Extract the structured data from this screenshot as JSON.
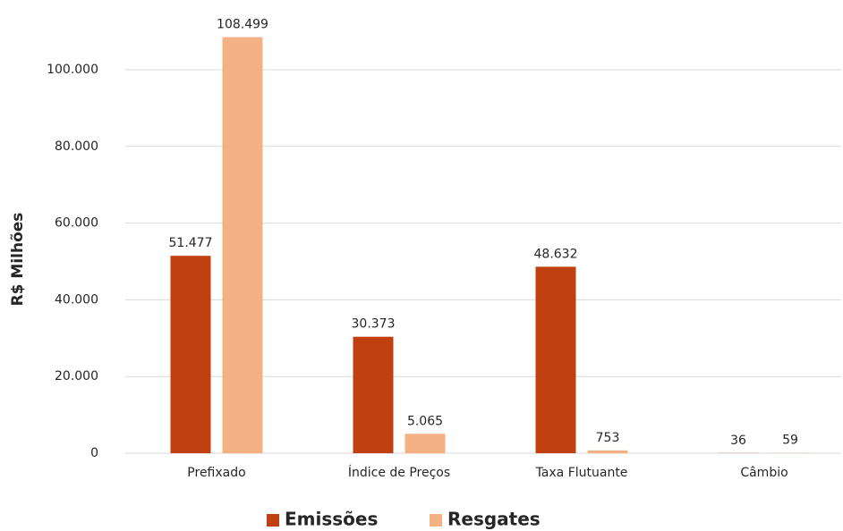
{
  "chart_data": {
    "type": "bar",
    "y_label": "R$ Milhões",
    "categories": [
      "Prefixado",
      "Índice de Preços",
      "Taxa Flutuante",
      "Câmbio"
    ],
    "series": [
      {
        "name": "Emissões",
        "color": "#c0410f",
        "values": [
          51477,
          30373,
          48632,
          36
        ],
        "value_labels": [
          "51.477",
          "30.373",
          "48.632",
          "36"
        ]
      },
      {
        "name": "Resgates",
        "color": "#f4b183",
        "values": [
          108499,
          5065,
          753,
          59
        ],
        "value_labels": [
          "108.499",
          "5.065",
          "753",
          "59"
        ]
      }
    ],
    "ylim": [
      0,
      110000
    ],
    "yticks": [
      0,
      {
        "value": 20000,
        "label": "20.000"
      },
      {
        "value": 40000,
        "label": "40.000"
      },
      {
        "value": 60000,
        "label": "60.000"
      },
      {
        "value": 80000,
        "label": "80.000"
      },
      {
        "value": 100000,
        "label": "100.000"
      }
    ],
    "grid": true,
    "legend": "bottom"
  }
}
